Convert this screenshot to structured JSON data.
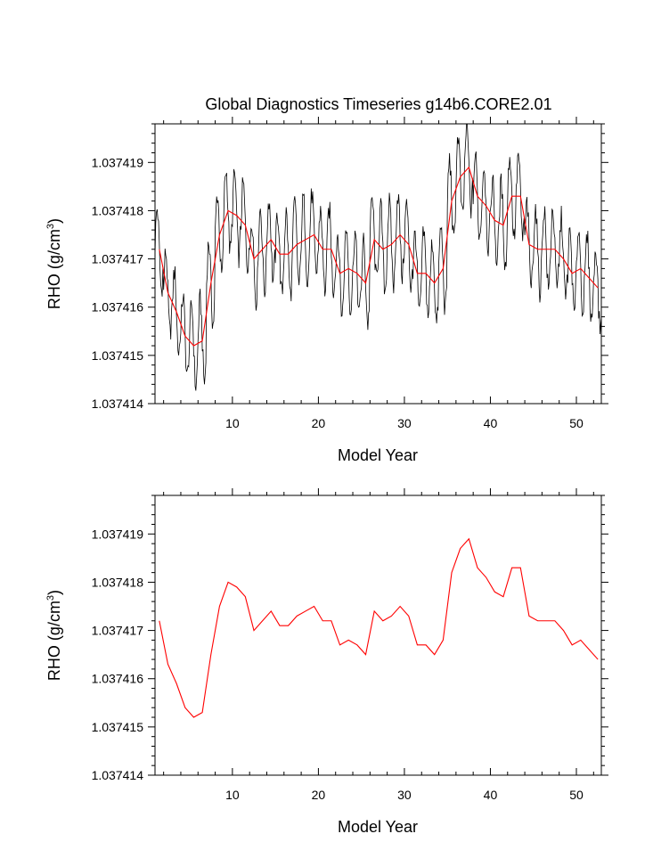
{
  "title": "Global Diagnostics Timeseries g14b6.CORE2.01",
  "colors": {
    "monthly": "#000000",
    "annual": "#ff0000",
    "axes": "#000000"
  },
  "chart_data": [
    {
      "type": "line",
      "panel": "top",
      "title": "Global Diagnostics Timeseries g14b6.CORE2.01",
      "xlabel": "Model Year",
      "ylabel_main": "RHO (g/cm",
      "ylabel_sup": "3",
      "ylabel_close": ")",
      "xlim": [
        1,
        52.9
      ],
      "ylim": [
        1.037414,
        1.0374198
      ],
      "xticks": [
        10,
        20,
        30,
        40,
        50
      ],
      "yticks": [
        1.037414,
        1.037415,
        1.037416,
        1.037417,
        1.037418,
        1.037419
      ],
      "ytick_labels": [
        "1.037414",
        "1.037415",
        "1.037416",
        "1.037417",
        "1.037418",
        "1.037419"
      ],
      "series": [
        {
          "name": "monthly",
          "color": "#000000",
          "kind": "monthly-seasonal",
          "amplitude": 8.5e-07,
          "seasonal_phase_month": 3
        },
        {
          "name": "annual",
          "color": "#ff0000",
          "x": [
            1.5,
            2.5,
            3.5,
            4.5,
            5.5,
            6.5,
            7.5,
            8.5,
            9.5,
            10.5,
            11.5,
            12.5,
            13.5,
            14.5,
            15.5,
            16.5,
            17.5,
            18.5,
            19.5,
            20.5,
            21.5,
            22.5,
            23.5,
            24.5,
            25.5,
            26.5,
            27.5,
            28.5,
            29.5,
            30.5,
            31.5,
            32.5,
            33.5,
            34.5,
            35.5,
            36.5,
            37.5,
            38.5,
            39.5,
            40.5,
            41.5,
            42.5,
            43.5,
            44.5,
            45.5,
            46.5,
            47.5,
            48.5,
            49.5,
            50.5,
            51.5,
            52.5
          ],
          "values": [
            1.0374172,
            1.0374163,
            1.0374159,
            1.0374154,
            1.0374152,
            1.0374153,
            1.0374165,
            1.0374175,
            1.037418,
            1.0374179,
            1.0374177,
            1.037417,
            1.0374172,
            1.0374174,
            1.0374171,
            1.0374171,
            1.0374173,
            1.0374174,
            1.0374175,
            1.0374172,
            1.0374172,
            1.0374167,
            1.0374168,
            1.0374167,
            1.0374165,
            1.0374174,
            1.0374172,
            1.0374173,
            1.0374175,
            1.0374173,
            1.0374167,
            1.0374167,
            1.0374165,
            1.0374168,
            1.0374182,
            1.0374187,
            1.0374189,
            1.0374183,
            1.0374181,
            1.0374178,
            1.0374177,
            1.0374183,
            1.0374183,
            1.0374173,
            1.0374172,
            1.0374172,
            1.0374172,
            1.037417,
            1.0374167,
            1.0374168,
            1.0374166,
            1.0374164
          ]
        }
      ]
    },
    {
      "type": "line",
      "panel": "bottom",
      "title": "",
      "xlabel": "Model Year",
      "ylabel_main": "RHO (g/cm",
      "ylabel_sup": "3",
      "ylabel_close": ")",
      "xlim": [
        1,
        52.9
      ],
      "ylim": [
        1.037414,
        1.0374198
      ],
      "xticks": [
        10,
        20,
        30,
        40,
        50
      ],
      "yticks": [
        1.037414,
        1.037415,
        1.037416,
        1.037417,
        1.037418,
        1.037419
      ],
      "ytick_labels": [
        "1.037414",
        "1.037415",
        "1.037416",
        "1.037417",
        "1.037418",
        "1.037419"
      ],
      "series": [
        {
          "name": "annual",
          "color": "#ff0000",
          "x": [
            1.5,
            2.5,
            3.5,
            4.5,
            5.5,
            6.5,
            7.5,
            8.5,
            9.5,
            10.5,
            11.5,
            12.5,
            13.5,
            14.5,
            15.5,
            16.5,
            17.5,
            18.5,
            19.5,
            20.5,
            21.5,
            22.5,
            23.5,
            24.5,
            25.5,
            26.5,
            27.5,
            28.5,
            29.5,
            30.5,
            31.5,
            32.5,
            33.5,
            34.5,
            35.5,
            36.5,
            37.5,
            38.5,
            39.5,
            40.5,
            41.5,
            42.5,
            43.5,
            44.5,
            45.5,
            46.5,
            47.5,
            48.5,
            49.5,
            50.5,
            51.5,
            52.5
          ],
          "values": [
            1.0374172,
            1.0374163,
            1.0374159,
            1.0374154,
            1.0374152,
            1.0374153,
            1.0374165,
            1.0374175,
            1.037418,
            1.0374179,
            1.0374177,
            1.037417,
            1.0374172,
            1.0374174,
            1.0374171,
            1.0374171,
            1.0374173,
            1.0374174,
            1.0374175,
            1.0374172,
            1.0374172,
            1.0374167,
            1.0374168,
            1.0374167,
            1.0374165,
            1.0374174,
            1.0374172,
            1.0374173,
            1.0374175,
            1.0374173,
            1.0374167,
            1.0374167,
            1.0374165,
            1.0374168,
            1.0374182,
            1.0374187,
            1.0374189,
            1.0374183,
            1.0374181,
            1.0374178,
            1.0374177,
            1.0374183,
            1.0374183,
            1.0374173,
            1.0374172,
            1.0374172,
            1.0374172,
            1.037417,
            1.0374167,
            1.0374168,
            1.0374166,
            1.0374164
          ]
        }
      ]
    }
  ]
}
